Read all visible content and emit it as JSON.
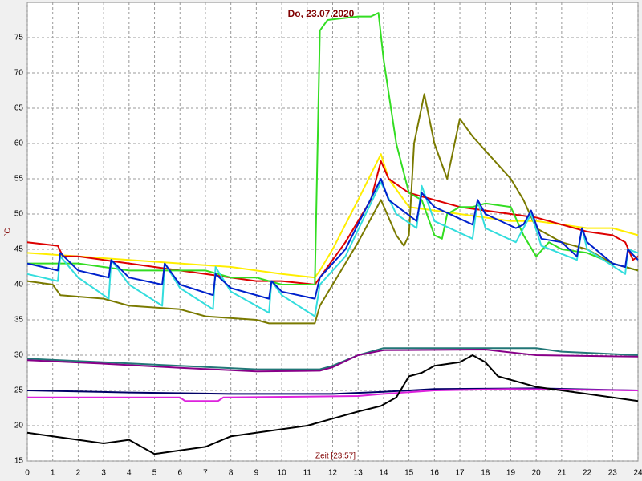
{
  "chart_data": {
    "type": "line",
    "title": "Do, 23.07.2020",
    "y_label": "°C",
    "x_label": "Zeit [23:57]",
    "xlim": [
      0,
      24
    ],
    "xticks": [
      0,
      1,
      2,
      3,
      4,
      5,
      6,
      7,
      8,
      9,
      10,
      11,
      12,
      13,
      14,
      15,
      16,
      17,
      18,
      19,
      20,
      21,
      22,
      23,
      24
    ],
    "ylim": [
      15,
      80
    ],
    "yticks": [
      15,
      20,
      25,
      30,
      35,
      40,
      45,
      50,
      55,
      60,
      65,
      70,
      75
    ],
    "grid": true,
    "series": [
      {
        "color": "#ffee00",
        "x": [
          0,
          2,
          4,
          6,
          8,
          10,
          11.3,
          11.5,
          12,
          13,
          13.9,
          14.2,
          15,
          16,
          17,
          18,
          19,
          20,
          21,
          22,
          23,
          24
        ],
        "values": [
          44.5,
          44,
          43.5,
          43,
          42.5,
          41.5,
          41,
          42,
          45,
          52,
          58.5,
          55,
          51,
          50.5,
          50,
          49.5,
          49,
          49,
          48.5,
          48,
          48,
          47
        ]
      },
      {
        "color": "#dd0000",
        "x": [
          0,
          1.2,
          1.4,
          2,
          3,
          4,
          5,
          6,
          7,
          8,
          9,
          10,
          11.3,
          11.6,
          12.5,
          13.5,
          13.9,
          14.2,
          15,
          16,
          17,
          18,
          19,
          20,
          21,
          22,
          23,
          23.5,
          23.8,
          24
        ],
        "values": [
          46,
          45.5,
          44,
          44,
          43.5,
          43,
          42.5,
          42,
          41.5,
          41,
          40.5,
          40.5,
          40,
          41.5,
          46,
          52,
          57.5,
          55,
          53,
          52,
          51,
          50.5,
          50,
          49.5,
          48.5,
          47.5,
          47,
          46,
          43.5,
          44
        ]
      },
      {
        "color": "#33dd22",
        "x": [
          0,
          2,
          3,
          4,
          5,
          6,
          7,
          8,
          9,
          10,
          11,
          11.3,
          11.5,
          11.8,
          13,
          13.5,
          13.8,
          14,
          14.5,
          15,
          15.5,
          16,
          16.3,
          16.5,
          17,
          17.5,
          18,
          19,
          19.5,
          20,
          20.5,
          21,
          22,
          23,
          24
        ],
        "values": [
          43,
          43,
          42.5,
          42,
          42,
          42,
          42,
          41,
          41,
          40,
          40,
          40,
          76,
          77.5,
          78,
          78,
          78.5,
          72,
          60,
          53,
          52,
          47,
          46.5,
          50,
          51,
          51,
          51.5,
          51,
          47,
          44,
          46,
          45,
          44.5,
          43,
          42
        ]
      },
      {
        "color": "#7a7a00",
        "x": [
          0,
          1,
          1.3,
          3,
          4,
          6,
          7,
          9,
          9.5,
          11.3,
          11.5,
          12,
          13,
          13.9,
          14.5,
          14.8,
          15,
          15.2,
          15.6,
          16,
          16.5,
          17,
          17.5,
          18,
          19,
          19.5,
          20,
          21,
          22,
          23,
          24
        ],
        "values": [
          40.5,
          40,
          38.5,
          38,
          37,
          36.5,
          35.5,
          35,
          34.5,
          34.5,
          37,
          40,
          46,
          52,
          47,
          45.5,
          47,
          60,
          67,
          60,
          55,
          63.5,
          61,
          59,
          55,
          52,
          48,
          46,
          45,
          43,
          42
        ]
      },
      {
        "color": "#33dddd",
        "x": [
          0,
          1.2,
          1.3,
          2,
          3.2,
          3.3,
          4,
          5.3,
          5.4,
          6,
          7.3,
          7.4,
          8,
          9.5,
          9.6,
          10,
          11.3,
          11.5,
          12.5,
          13.9,
          14.5,
          15.3,
          15.5,
          16,
          17.5,
          17.7,
          18,
          19.2,
          19.8,
          20.2,
          21.6,
          21.8,
          22,
          23.5,
          23.6,
          24
        ],
        "values": [
          41.5,
          40.5,
          44,
          41,
          38,
          43.5,
          40,
          37,
          43,
          39.5,
          36.5,
          42.5,
          39,
          36,
          40.5,
          38.5,
          35.5,
          40,
          44,
          54.5,
          50,
          48,
          54,
          49,
          46.5,
          52,
          48,
          46,
          50,
          45.5,
          43.5,
          48,
          45,
          41.5,
          45,
          44.5
        ]
      },
      {
        "color": "#0022cc",
        "x": [
          0,
          1.2,
          1.3,
          2,
          3.2,
          3.3,
          4,
          5.3,
          5.4,
          6,
          7.3,
          7.4,
          8,
          9.5,
          9.6,
          10,
          11.3,
          11.5,
          12.5,
          13.9,
          14.2,
          15.3,
          15.5,
          16,
          17.5,
          17.7,
          18,
          19.2,
          19.5,
          19.8,
          20.2,
          21,
          21.6,
          21.8,
          22,
          23,
          23.5,
          23.6,
          24
        ],
        "values": [
          43,
          42,
          44.5,
          42,
          41,
          43.5,
          41,
          40,
          43,
          40,
          38.5,
          41.5,
          39.5,
          38,
          40.5,
          39,
          38,
          41,
          45,
          55,
          52,
          49,
          53,
          51,
          48.5,
          52,
          50,
          48,
          48.5,
          50.5,
          46.5,
          46,
          44,
          48,
          46,
          43,
          42.5,
          45,
          43.5
        ]
      },
      {
        "color": "#227777",
        "x": [
          0,
          3,
          6,
          9,
          11,
          11.5,
          12,
          13,
          14,
          17,
          20,
          21,
          24
        ],
        "values": [
          29.5,
          29,
          28.5,
          28,
          28,
          28,
          28.5,
          30,
          31,
          31,
          31,
          30.5,
          30
        ]
      },
      {
        "color": "#880088",
        "x": [
          0,
          3,
          6,
          9,
          11.5,
          12,
          13,
          14,
          18,
          20,
          24
        ],
        "values": [
          29.3,
          28.8,
          28.2,
          27.7,
          27.8,
          28.3,
          30,
          30.7,
          30.8,
          30,
          29.8
        ]
      },
      {
        "color": "#000066",
        "x": [
          0,
          4,
          8,
          12,
          14,
          16,
          20,
          24
        ],
        "values": [
          25,
          24.7,
          24.5,
          24.5,
          24.8,
          25.2,
          25.3,
          25
        ]
      },
      {
        "color": "#dd22dd",
        "x": [
          0,
          6,
          6.2,
          7.5,
          7.7,
          13,
          14,
          16,
          19,
          24
        ],
        "values": [
          24,
          24,
          23.5,
          23.5,
          24,
          24.2,
          24.5,
          25,
          25.2,
          25
        ]
      },
      {
        "color": "#000000",
        "x": [
          0,
          1,
          2,
          3,
          4,
          5,
          6,
          7,
          8,
          9,
          10,
          11,
          12,
          13,
          13.9,
          14.5,
          15,
          15.5,
          16,
          17,
          17.5,
          18,
          18.5,
          19,
          20,
          21,
          22,
          23,
          24
        ],
        "values": [
          19,
          18.5,
          18,
          17.5,
          18,
          16,
          16.5,
          17,
          18.5,
          19,
          19.5,
          20,
          21,
          22,
          22.8,
          24,
          27,
          27.5,
          28.5,
          29,
          30,
          29,
          27,
          26.5,
          25.5,
          25,
          24.5,
          24,
          23.5
        ]
      }
    ]
  }
}
